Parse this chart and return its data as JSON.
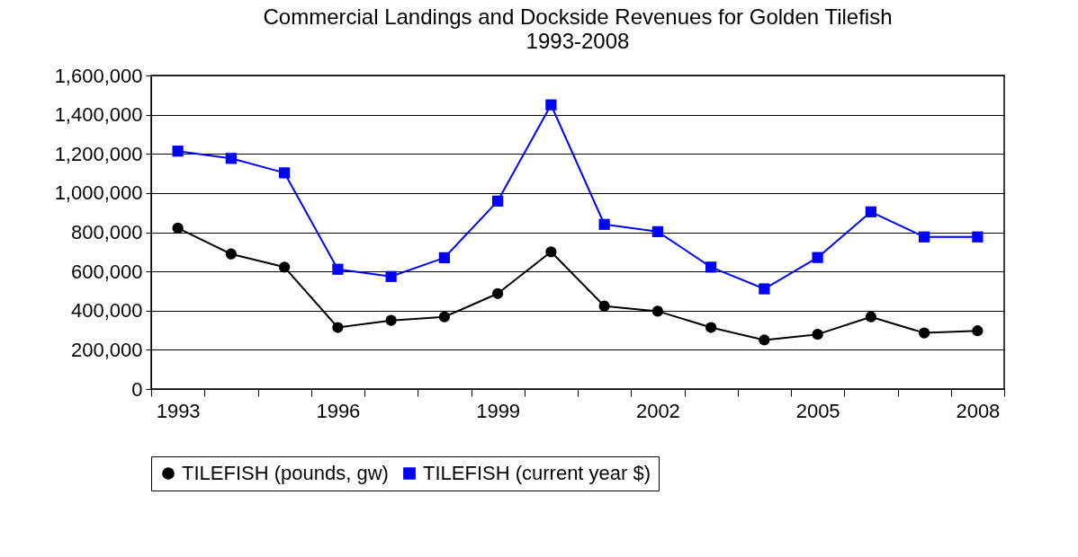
{
  "chart_data": {
    "type": "line",
    "title": "Commercial Landings and Dockside Revenues for Golden Tilefish",
    "subtitle": "1993-2008",
    "categories": [
      "1993",
      null,
      null,
      "1996",
      null,
      null,
      "1999",
      null,
      null,
      "2002",
      null,
      null,
      "2005",
      null,
      null,
      "2008"
    ],
    "series": [
      {
        "name": "TILEFISH (pounds, gw)",
        "color": "#000000",
        "marker": "circle",
        "values": [
          821000,
          689000,
          622000,
          314000,
          350000,
          368000,
          487000,
          700000,
          423000,
          397000,
          314000,
          250000,
          279000,
          368000,
          286000,
          297000
        ]
      },
      {
        "name": "TILEFISH (current year $)",
        "color": "#0000ff",
        "marker": "square",
        "values": [
          1214000,
          1177000,
          1103000,
          611000,
          574000,
          670000,
          959000,
          1450000,
          840000,
          803000,
          622000,
          511000,
          671000,
          904000,
          776000,
          776000
        ]
      }
    ],
    "ylim": [
      0,
      1600000
    ],
    "yticks": [
      0,
      {
        "value": 200000,
        "label": "200,000"
      },
      {
        "value": 400000,
        "label": "400,000"
      },
      {
        "value": 600000,
        "label": "600,000"
      },
      {
        "value": 800000,
        "label": "800,000"
      },
      {
        "value": 1000000,
        "label": "1,000,000"
      },
      {
        "value": 1200000,
        "label": "1,200,000"
      },
      {
        "value": 1400000,
        "label": "1,400,000"
      },
      {
        "value": 1600000,
        "label": "1,600,000"
      }
    ],
    "grid": "y",
    "legend": "bottom",
    "line_style": "solid"
  }
}
